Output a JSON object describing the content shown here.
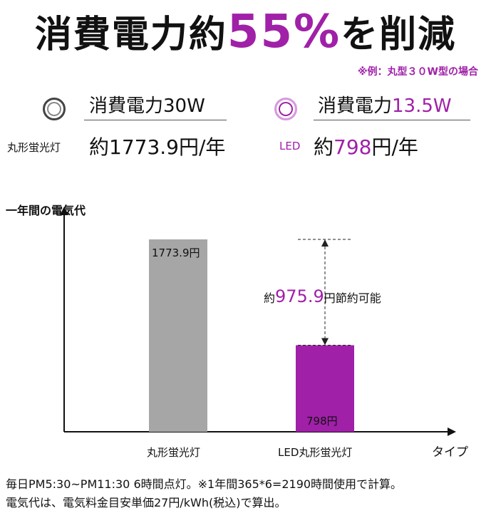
{
  "headline": {
    "before": "消費電力約",
    "percent": "55%",
    "after": "を削減"
  },
  "example_note": "※例：丸型３０W型の場合",
  "fluorescent": {
    "power_label": "消費電力",
    "power_value": "30W",
    "lamp_label": "丸形蛍光灯",
    "cost_prefix": "約",
    "cost_value": "1773.9",
    "cost_suffix": "円/年"
  },
  "led": {
    "power_label": "消費電力",
    "power_value": "13.5W",
    "lamp_label": "LED",
    "cost_prefix": "約",
    "cost_value": "798",
    "cost_suffix": "円/年"
  },
  "chart_data": {
    "type": "bar",
    "ylabel": "一年間の電気代",
    "xlabel": "タイプ",
    "categories": [
      "丸形蛍光灯",
      "LED丸形蛍光灯"
    ],
    "values": [
      1773.9,
      798
    ],
    "value_labels": [
      "1773.9円",
      "798円"
    ],
    "bar_colors": [
      "#a6a6a6",
      "#a020a8"
    ],
    "ylim": [
      0,
      2200
    ],
    "annotation": {
      "prefix": "約",
      "value": "975.9",
      "suffix": "円節約可能"
    }
  },
  "footnotes": [
    "毎日PM5:30~PM11:30 6時間点灯。※1年間365*6=2190時間使用で計算。",
    "電気代は、電気料金目安単価27円/kWh(税込)で算出。"
  ],
  "colors": {
    "accent": "#a020a8",
    "bar_gray": "#a6a6a6"
  }
}
